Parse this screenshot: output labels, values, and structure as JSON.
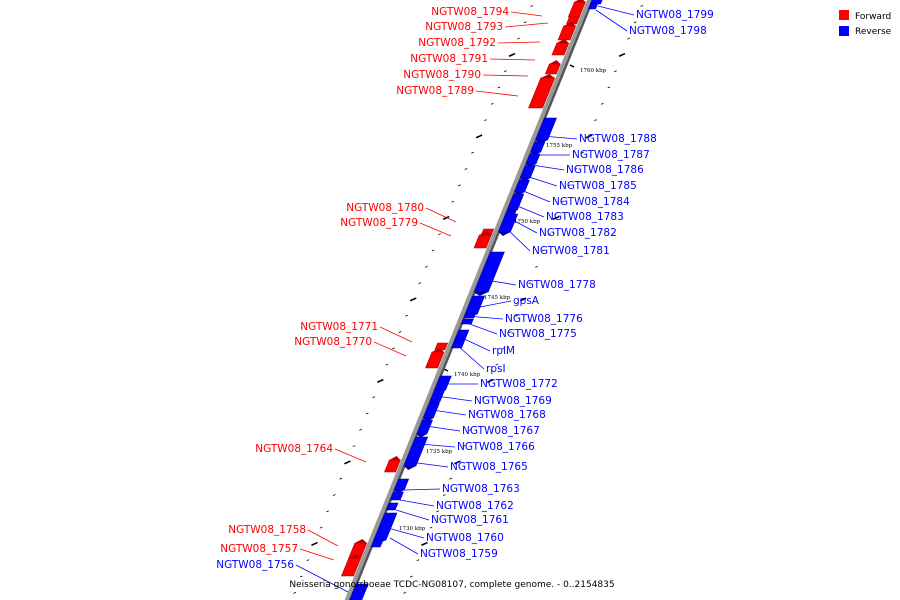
{
  "caption": "Neisseria gonorrhoeae TCDC-NG08107, complete genome. - 0..2154835",
  "legend": [
    {
      "label": "Forward",
      "color": "#ff0000"
    },
    {
      "label": "Reverse",
      "color": "#0000ff"
    }
  ],
  "colors": {
    "forward": "#ff0000",
    "reverse": "#0000ff",
    "backbone": "#999999"
  },
  "ticks": [
    "1760 kbp",
    "1755 kbp",
    "1750 kbp",
    "1745 kbp",
    "1740 kbp",
    "1735 kbp",
    "1730 kbp"
  ],
  "genes": [
    {
      "id": "g1799",
      "label": "NGTW08_1799",
      "strand": "reverse"
    },
    {
      "id": "g1798",
      "label": "NGTW08_1798",
      "strand": "reverse"
    },
    {
      "id": "g1794",
      "label": "NGTW08_1794",
      "strand": "forward"
    },
    {
      "id": "g1793",
      "label": "NGTW08_1793",
      "strand": "forward"
    },
    {
      "id": "g1792",
      "label": "NGTW08_1792",
      "strand": "forward"
    },
    {
      "id": "g1791",
      "label": "NGTW08_1791",
      "strand": "forward"
    },
    {
      "id": "g1790",
      "label": "NGTW08_1790",
      "strand": "forward"
    },
    {
      "id": "g1789",
      "label": "NGTW08_1789",
      "strand": "forward"
    },
    {
      "id": "g1788",
      "label": "NGTW08_1788",
      "strand": "reverse"
    },
    {
      "id": "g1787",
      "label": "NGTW08_1787",
      "strand": "reverse"
    },
    {
      "id": "g1786",
      "label": "NGTW08_1786",
      "strand": "reverse"
    },
    {
      "id": "g1785",
      "label": "NGTW08_1785",
      "strand": "reverse"
    },
    {
      "id": "g1784",
      "label": "NGTW08_1784",
      "strand": "reverse"
    },
    {
      "id": "g1783",
      "label": "NGTW08_1783",
      "strand": "reverse"
    },
    {
      "id": "g1782",
      "label": "NGTW08_1782",
      "strand": "reverse"
    },
    {
      "id": "g1781",
      "label": "NGTW08_1781",
      "strand": "reverse"
    },
    {
      "id": "g1780",
      "label": "NGTW08_1780",
      "strand": "forward"
    },
    {
      "id": "g1779",
      "label": "NGTW08_1779",
      "strand": "forward"
    },
    {
      "id": "g1778",
      "label": "NGTW08_1778",
      "strand": "reverse"
    },
    {
      "id": "gpsA",
      "label": "gpsA",
      "strand": "reverse"
    },
    {
      "id": "g1776",
      "label": "NGTW08_1776",
      "strand": "reverse"
    },
    {
      "id": "g1775",
      "label": "NGTW08_1775",
      "strand": "reverse"
    },
    {
      "id": "rplM",
      "label": "rplM",
      "strand": "reverse"
    },
    {
      "id": "rpsI",
      "label": "rpsI",
      "strand": "reverse"
    },
    {
      "id": "g1772",
      "label": "NGTW08_1772",
      "strand": "reverse"
    },
    {
      "id": "g1771",
      "label": "NGTW08_1771",
      "strand": "forward"
    },
    {
      "id": "g1770",
      "label": "NGTW08_1770",
      "strand": "forward"
    },
    {
      "id": "g1769",
      "label": "NGTW08_1769",
      "strand": "reverse"
    },
    {
      "id": "g1768",
      "label": "NGTW08_1768",
      "strand": "reverse"
    },
    {
      "id": "g1767",
      "label": "NGTW08_1767",
      "strand": "reverse"
    },
    {
      "id": "g1766",
      "label": "NGTW08_1766",
      "strand": "reverse"
    },
    {
      "id": "g1765",
      "label": "NGTW08_1765",
      "strand": "reverse"
    },
    {
      "id": "g1764",
      "label": "NGTW08_1764",
      "strand": "forward"
    },
    {
      "id": "g1763",
      "label": "NGTW08_1763",
      "strand": "reverse"
    },
    {
      "id": "g1762",
      "label": "NGTW08_1762",
      "strand": "reverse"
    },
    {
      "id": "g1761",
      "label": "NGTW08_1761",
      "strand": "reverse"
    },
    {
      "id": "g1760",
      "label": "NGTW08_1760",
      "strand": "reverse"
    },
    {
      "id": "g1759",
      "label": "NGTW08_1759",
      "strand": "reverse"
    },
    {
      "id": "g1758",
      "label": "NGTW08_1758",
      "strand": "forward"
    },
    {
      "id": "g1757",
      "label": "NGTW08_1757",
      "strand": "forward"
    },
    {
      "id": "g1756",
      "label": "NGTW08_1756",
      "strand": "reverse"
    }
  ]
}
